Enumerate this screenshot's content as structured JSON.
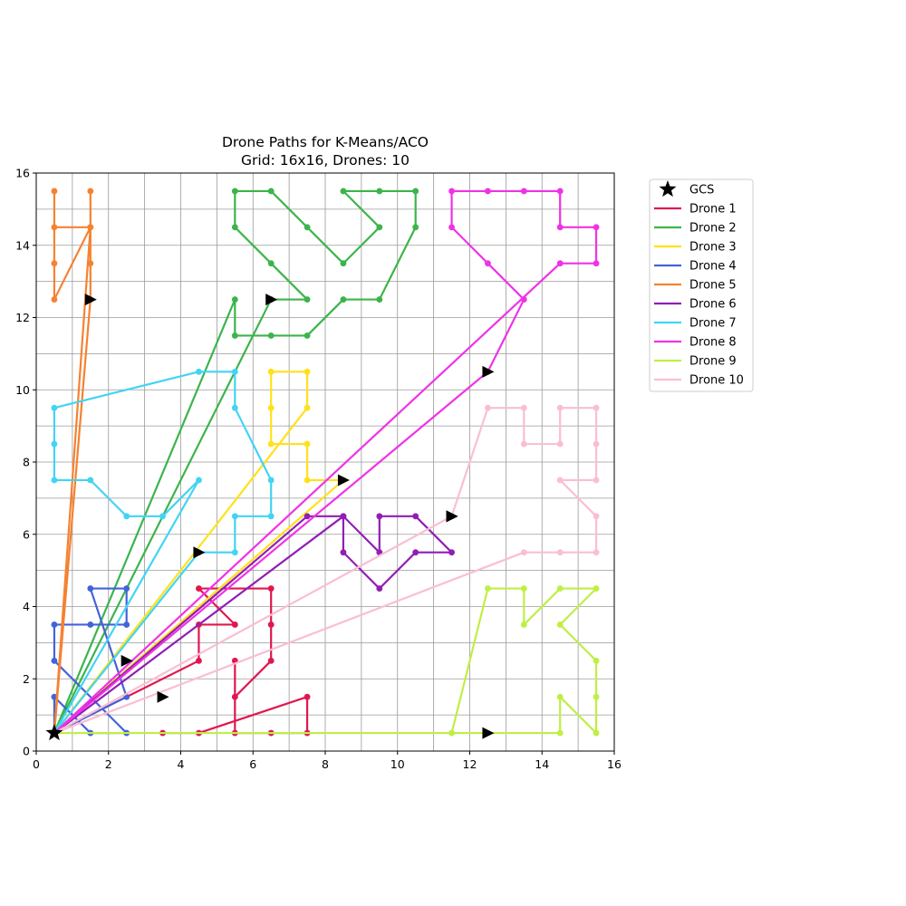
{
  "chart_data": {
    "type": "line",
    "title_lines": [
      "Drone Paths for K-Means/ACO",
      "Grid: 16x16, Drones: 10"
    ],
    "xlim": [
      0,
      16
    ],
    "ylim": [
      0,
      16
    ],
    "xticks": [
      "0",
      "2",
      "4",
      "6",
      "8",
      "10",
      "12",
      "14",
      "16"
    ],
    "yticks": [
      "0",
      "2",
      "4",
      "6",
      "8",
      "10",
      "12",
      "14",
      "16"
    ],
    "grid": true,
    "legend_position": "outside-upper-right",
    "gcs": {
      "label": "GCS",
      "x": 0.5,
      "y": 0.5,
      "icon": "star-icon",
      "color": "#000000"
    },
    "series": [
      {
        "name": "Drone 1",
        "color": "#e0174f",
        "arrow": [
          3.5,
          1.5
        ],
        "points": [
          [
            0.5,
            0.5
          ],
          [
            4.5,
            2.5
          ],
          [
            4.5,
            3.5
          ],
          [
            5.5,
            3.5
          ],
          [
            4.5,
            4.5
          ],
          [
            6.5,
            4.5
          ],
          [
            6.5,
            3.5
          ],
          [
            6.5,
            2.5
          ],
          [
            5.5,
            1.5
          ],
          [
            5.5,
            2.5
          ],
          [
            5.5,
            0.5
          ],
          [
            6.5,
            0.5
          ],
          [
            7.5,
            0.5
          ],
          [
            7.5,
            1.5
          ],
          [
            4.5,
            0.5
          ],
          [
            3.5,
            0.5
          ]
        ]
      },
      {
        "name": "Drone 2",
        "color": "#3cb44b",
        "arrow": [
          6.5,
          12.5
        ],
        "points": [
          [
            0.5,
            0.5
          ],
          [
            5.5,
            12.5
          ],
          [
            5.5,
            11.5
          ],
          [
            6.5,
            11.5
          ],
          [
            7.5,
            11.5
          ],
          [
            8.5,
            12.5
          ],
          [
            9.5,
            12.5
          ],
          [
            10.5,
            14.5
          ],
          [
            10.5,
            15.5
          ],
          [
            9.5,
            15.5
          ],
          [
            8.5,
            15.5
          ],
          [
            9.5,
            14.5
          ],
          [
            8.5,
            13.5
          ],
          [
            7.5,
            14.5
          ],
          [
            6.5,
            15.5
          ],
          [
            5.5,
            15.5
          ],
          [
            5.5,
            14.5
          ],
          [
            6.5,
            13.5
          ],
          [
            7.5,
            12.5
          ],
          [
            6.5,
            12.5
          ],
          [
            0.5,
            0.5
          ]
        ]
      },
      {
        "name": "Drone 3",
        "color": "#ffe119",
        "arrow": [
          8.5,
          7.5
        ],
        "points": [
          [
            0.5,
            0.5
          ],
          [
            7.5,
            9.5
          ],
          [
            7.5,
            10.5
          ],
          [
            6.5,
            10.5
          ],
          [
            6.5,
            9.5
          ],
          [
            6.5,
            8.5
          ],
          [
            7.5,
            8.5
          ],
          [
            7.5,
            7.5
          ],
          [
            8.5,
            7.5
          ],
          [
            0.5,
            0.5
          ]
        ]
      },
      {
        "name": "Drone 4",
        "color": "#4363d8",
        "arrow": [
          2.5,
          2.5
        ],
        "points": [
          [
            0.5,
            0.5
          ],
          [
            0.5,
            1.5
          ],
          [
            1.5,
            0.5
          ],
          [
            2.5,
            0.5
          ],
          [
            0.5,
            2.5
          ],
          [
            0.5,
            3.5
          ],
          [
            1.5,
            3.5
          ],
          [
            2.5,
            3.5
          ],
          [
            2.5,
            4.5
          ],
          [
            1.5,
            4.5
          ],
          [
            2.5,
            1.5
          ],
          [
            0.5,
            0.5
          ]
        ]
      },
      {
        "name": "Drone 5",
        "color": "#f58231",
        "arrow": [
          1.5,
          12.5
        ],
        "points": [
          [
            0.5,
            0.5
          ],
          [
            1.5,
            14.5
          ],
          [
            0.5,
            14.5
          ],
          [
            0.5,
            15.5
          ],
          [
            0.5,
            13.5
          ],
          [
            0.5,
            12.5
          ],
          [
            1.5,
            14.5
          ],
          [
            1.5,
            15.5
          ],
          [
            1.5,
            13.5
          ],
          [
            1.5,
            12.5
          ],
          [
            0.5,
            0.5
          ]
        ]
      },
      {
        "name": "Drone 6",
        "color": "#911eb4",
        "arrow": [
          11.5,
          6.5
        ],
        "points": [
          [
            0.5,
            0.5
          ],
          [
            7.5,
            6.5
          ],
          [
            8.5,
            6.5
          ],
          [
            8.5,
            5.5
          ],
          [
            9.5,
            4.5
          ],
          [
            10.5,
            5.5
          ],
          [
            11.5,
            5.5
          ],
          [
            10.5,
            6.5
          ],
          [
            9.5,
            6.5
          ],
          [
            9.5,
            5.5
          ],
          [
            8.5,
            6.5
          ],
          [
            0.5,
            0.5
          ]
        ]
      },
      {
        "name": "Drone 7",
        "color": "#42d4f4",
        "arrow": [
          4.5,
          5.5
        ],
        "points": [
          [
            0.5,
            0.5
          ],
          [
            4.5,
            5.5
          ],
          [
            5.5,
            5.5
          ],
          [
            5.5,
            6.5
          ],
          [
            6.5,
            6.5
          ],
          [
            6.5,
            7.5
          ],
          [
            5.5,
            9.5
          ],
          [
            5.5,
            10.5
          ],
          [
            4.5,
            10.5
          ],
          [
            0.5,
            9.5
          ],
          [
            0.5,
            8.5
          ],
          [
            0.5,
            7.5
          ],
          [
            1.5,
            7.5
          ],
          [
            2.5,
            6.5
          ],
          [
            3.5,
            6.5
          ],
          [
            4.5,
            7.5
          ],
          [
            0.5,
            0.5
          ]
        ]
      },
      {
        "name": "Drone 8",
        "color": "#f032e6",
        "arrow": [
          12.5,
          10.5
        ],
        "points": [
          [
            0.5,
            0.5
          ],
          [
            12.5,
            10.5
          ],
          [
            13.5,
            12.5
          ],
          [
            12.5,
            13.5
          ],
          [
            11.5,
            14.5
          ],
          [
            11.5,
            15.5
          ],
          [
            12.5,
            15.5
          ],
          [
            13.5,
            15.5
          ],
          [
            14.5,
            15.5
          ],
          [
            14.5,
            14.5
          ],
          [
            15.5,
            14.5
          ],
          [
            15.5,
            13.5
          ],
          [
            14.5,
            13.5
          ],
          [
            0.5,
            0.5
          ]
        ]
      },
      {
        "name": "Drone 9",
        "color": "#bfef45",
        "arrow": [
          12.5,
          0.5
        ],
        "points": [
          [
            0.5,
            0.5
          ],
          [
            14.5,
            0.5
          ],
          [
            14.5,
            1.5
          ],
          [
            15.5,
            0.5
          ],
          [
            15.5,
            1.5
          ],
          [
            15.5,
            2.5
          ],
          [
            14.5,
            3.5
          ],
          [
            15.5,
            4.5
          ],
          [
            14.5,
            4.5
          ],
          [
            13.5,
            3.5
          ],
          [
            13.5,
            4.5
          ],
          [
            12.5,
            4.5
          ],
          [
            11.5,
            0.5
          ],
          [
            0.5,
            0.5
          ]
        ]
      },
      {
        "name": "Drone 10",
        "color": "#fabed4",
        "arrow": [
          11.5,
          6.5
        ],
        "points": [
          [
            0.5,
            0.5
          ],
          [
            11.5,
            6.5
          ],
          [
            12.5,
            9.5
          ],
          [
            13.5,
            9.5
          ],
          [
            13.5,
            8.5
          ],
          [
            14.5,
            8.5
          ],
          [
            14.5,
            9.5
          ],
          [
            15.5,
            9.5
          ],
          [
            15.5,
            8.5
          ],
          [
            15.5,
            7.5
          ],
          [
            14.5,
            7.5
          ],
          [
            15.5,
            6.5
          ],
          [
            15.5,
            5.5
          ],
          [
            14.5,
            5.5
          ],
          [
            13.5,
            5.5
          ],
          [
            0.5,
            0.5
          ]
        ]
      }
    ]
  }
}
